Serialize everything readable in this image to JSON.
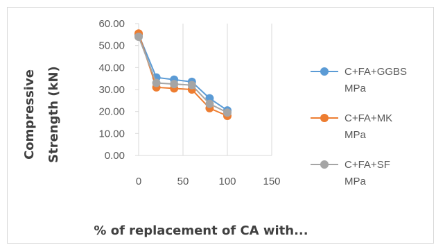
{
  "chart_data": {
    "type": "line",
    "title": "",
    "ylabel": "Compressive Strength (kN)",
    "xlabel": "% of replacement of CA with...",
    "ylim": [
      0,
      60
    ],
    "xlim": [
      0,
      150
    ],
    "yticks": [
      0,
      10,
      20,
      30,
      40,
      50,
      60
    ],
    "ytick_labels": [
      "0.00",
      "10.00",
      "20.00",
      "30.00",
      "40.00",
      "50.00",
      "60.00"
    ],
    "xticks": [
      0,
      50,
      100,
      150
    ],
    "xtick_labels": [
      "0",
      "50",
      "100",
      "150"
    ],
    "grid": "vertical",
    "legend": "right",
    "x": [
      0,
      20,
      40,
      60,
      80,
      100
    ],
    "series": [
      {
        "name": "C+FA+GGBS MPa",
        "label_lines": [
          "C+FA+GGBS",
          "MPa"
        ],
        "color": "#5b9bd5",
        "values": [
          55.0,
          35.5,
          34.5,
          33.5,
          26.0,
          20.5
        ]
      },
      {
        "name": "C+FA+MK MPa",
        "label_lines": [
          "C+FA+MK",
          "MPa"
        ],
        "color": "#ed7d31",
        "values": [
          55.5,
          31.0,
          30.5,
          30.0,
          21.5,
          18.0
        ]
      },
      {
        "name": "C+FA+SF MPa",
        "label_lines": [
          "C+FA+SF",
          "MPa"
        ],
        "color": "#a5a5a5",
        "values": [
          54.0,
          33.0,
          32.5,
          32.0,
          23.5,
          19.5
        ]
      }
    ]
  }
}
